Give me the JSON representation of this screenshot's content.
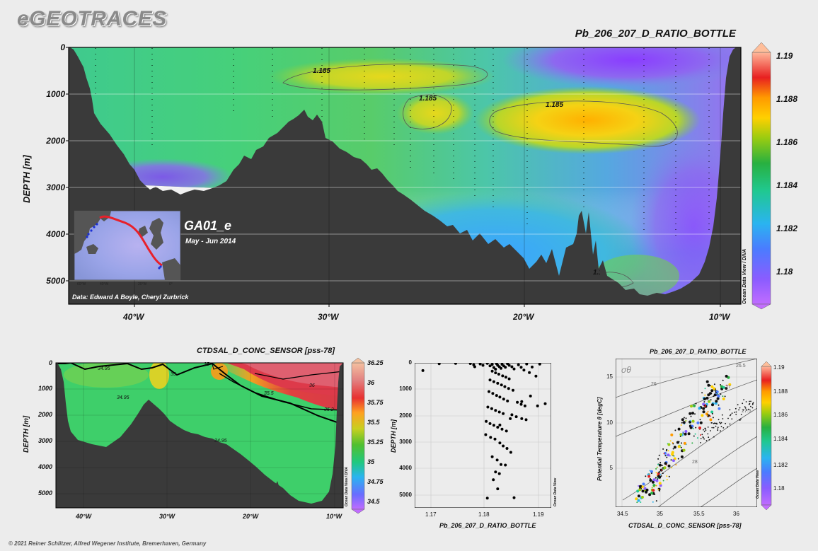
{
  "brand": "eGEOTRACES",
  "footer": "© 2021 Reiner Schlitzer, Alfred Wegener Institute, Bremerhaven, Germany",
  "odv_credit": "Ocean Data View / DIVA",
  "odv_credit_short": "Ocean Data View",
  "inset": {
    "cruise": "GA01_e",
    "dates": "May - Jun 2014",
    "data_credit": "Data: Edward A Boyle, Cheryl Zurbrick"
  },
  "colors": {
    "land": "#3a3a3a",
    "track": "#e8202a",
    "stations": "#1a2fd6"
  },
  "chart_data": [
    {
      "id": "main_section",
      "type": "heatmap",
      "title": "Pb_206_207_D_RATIO_BOTTLE",
      "ylabel": "DEPTH [m]",
      "x_ticks": [
        "40°W",
        "30°W",
        "20°W",
        "10°W"
      ],
      "x_tick_values": [
        -40,
        -30,
        -20,
        -10
      ],
      "y_ticks": [
        0,
        1000,
        2000,
        3000,
        4000,
        5000
      ],
      "xlim": [
        -43.5,
        -9.5
      ],
      "ylim": [
        5500,
        0
      ],
      "colorbar": {
        "ticks": [
          1.18,
          1.182,
          1.184,
          1.186,
          1.188,
          1.19
        ],
        "range": [
          1.1785,
          1.1915
        ]
      },
      "contour_labels": [
        "1.185",
        "1.185",
        "1.185",
        "1.185"
      ]
    },
    {
      "id": "salinity_section",
      "type": "heatmap",
      "title": "CTDSAL_D_CONC_SENSOR [pss-78]",
      "ylabel": "DEPTH [m]",
      "x_ticks": [
        "40°W",
        "30°W",
        "20°W",
        "10°W"
      ],
      "x_tick_values": [
        -40,
        -30,
        -20,
        -10
      ],
      "y_ticks": [
        0,
        1000,
        2000,
        3000,
        4000,
        5000
      ],
      "xlim": [
        -43.5,
        -9.5
      ],
      "ylim": [
        5500,
        0
      ],
      "colorbar": {
        "ticks": [
          34.5,
          34.75,
          35,
          35.25,
          35.5,
          35.75,
          36,
          36.25
        ],
        "range": [
          34.45,
          36.3
        ]
      },
      "contour_labels": [
        "34.95",
        "34.95",
        "34.95",
        "35",
        "35",
        "35.5",
        "36",
        "35.2"
      ]
    },
    {
      "id": "ratio_profile",
      "type": "scatter",
      "xlabel": "Pb_206_207_D_RATIO_BOTTLE",
      "ylabel": "DEPTH [m]",
      "x_ticks": [
        1.17,
        1.18,
        1.19
      ],
      "y_ticks": [
        0,
        1000,
        2000,
        3000,
        4000,
        5000
      ],
      "xlim": [
        1.167,
        1.192
      ],
      "ylim": [
        5250,
        0
      ],
      "points": [
        [
          1.1685,
          280
        ],
        [
          1.1715,
          30
        ],
        [
          1.1745,
          20
        ],
        [
          1.1772,
          25
        ],
        [
          1.1778,
          70
        ],
        [
          1.178,
          140
        ],
        [
          1.179,
          40
        ],
        [
          1.1795,
          90
        ],
        [
          1.1803,
          20
        ],
        [
          1.1808,
          110
        ],
        [
          1.1812,
          60
        ],
        [
          1.1815,
          170
        ],
        [
          1.1818,
          230
        ],
        [
          1.182,
          30
        ],
        [
          1.1822,
          90
        ],
        [
          1.1825,
          140
        ],
        [
          1.1828,
          200
        ],
        [
          1.183,
          50
        ],
        [
          1.1833,
          110
        ],
        [
          1.1836,
          160
        ],
        [
          1.184,
          30
        ],
        [
          1.1843,
          90
        ],
        [
          1.1848,
          140
        ],
        [
          1.1852,
          220
        ],
        [
          1.186,
          70
        ],
        [
          1.1865,
          160
        ],
        [
          1.187,
          260
        ],
        [
          1.1875,
          40
        ],
        [
          1.188,
          350
        ],
        [
          1.1885,
          150
        ],
        [
          1.1892,
          480
        ],
        [
          1.1899,
          45
        ],
        [
          1.1812,
          300
        ],
        [
          1.1818,
          360
        ],
        [
          1.1824,
          410
        ],
        [
          1.1831,
          470
        ],
        [
          1.1837,
          520
        ],
        [
          1.1843,
          580
        ],
        [
          1.1808,
          620
        ],
        [
          1.1815,
          680
        ],
        [
          1.1822,
          740
        ],
        [
          1.1829,
          800
        ],
        [
          1.1835,
          860
        ],
        [
          1.1842,
          930
        ],
        [
          1.185,
          990
        ],
        [
          1.1806,
          1040
        ],
        [
          1.1813,
          1110
        ],
        [
          1.182,
          1180
        ],
        [
          1.1826,
          1240
        ],
        [
          1.1833,
          1310
        ],
        [
          1.184,
          1380
        ],
        [
          1.1858,
          1430
        ],
        [
          1.1865,
          1500
        ],
        [
          1.1872,
          1560
        ],
        [
          1.1804,
          1600
        ],
        [
          1.1811,
          1660
        ],
        [
          1.1818,
          1720
        ],
        [
          1.1825,
          1780
        ],
        [
          1.1832,
          1840
        ],
        [
          1.1848,
          1880
        ],
        [
          1.1856,
          1950
        ],
        [
          1.1866,
          2020
        ],
        [
          1.1874,
          2060
        ],
        [
          1.1801,
          2120
        ],
        [
          1.1808,
          2200
        ],
        [
          1.1815,
          2260
        ],
        [
          1.1822,
          2330
        ],
        [
          1.183,
          2400
        ],
        [
          1.1838,
          2470
        ],
        [
          1.18,
          2600
        ],
        [
          1.1809,
          2700
        ],
        [
          1.1817,
          2760
        ],
        [
          1.1826,
          2900
        ],
        [
          1.1832,
          3010
        ],
        [
          1.1839,
          3100
        ],
        [
          1.1846,
          3240
        ],
        [
          1.1812,
          3400
        ],
        [
          1.1821,
          3520
        ],
        [
          1.1828,
          3680
        ],
        [
          1.1818,
          3950
        ],
        [
          1.1825,
          4010
        ],
        [
          1.1814,
          4230
        ],
        [
          1.1822,
          4560
        ],
        [
          1.1803,
          4900
        ],
        [
          1.1852,
          4880
        ],
        [
          1.1836,
          3700
        ],
        [
          1.1866,
          1400
        ],
        [
          1.1882,
          1200
        ],
        [
          1.1895,
          1560
        ],
        [
          1.1909,
          1480
        ],
        [
          1.1845,
          2020
        ],
        [
          1.1826,
          2250
        ]
      ]
    },
    {
      "id": "ts_diagram",
      "type": "scatter",
      "title": "Pb_206_207_D_RATIO_BOTTLE",
      "xlabel": "CTDSAL_D_CONC_SENSOR [pss-78]",
      "ylabel": "Potential Temperature θ [degC]",
      "x_ticks": [
        34.5,
        35,
        35.5,
        36
      ],
      "y_ticks": [
        5,
        10,
        15
      ],
      "xlim": [
        34.4,
        36.3
      ],
      "ylim": [
        1,
        16.5
      ],
      "isopycnal_labels": [
        "σθ",
        "26",
        "26.5",
        "27",
        "27.5",
        "28"
      ],
      "colorbar": {
        "ticks": [
          1.18,
          1.182,
          1.184,
          1.186,
          1.188,
          1.19
        ],
        "range": [
          1.1785,
          1.1915
        ]
      }
    }
  ]
}
